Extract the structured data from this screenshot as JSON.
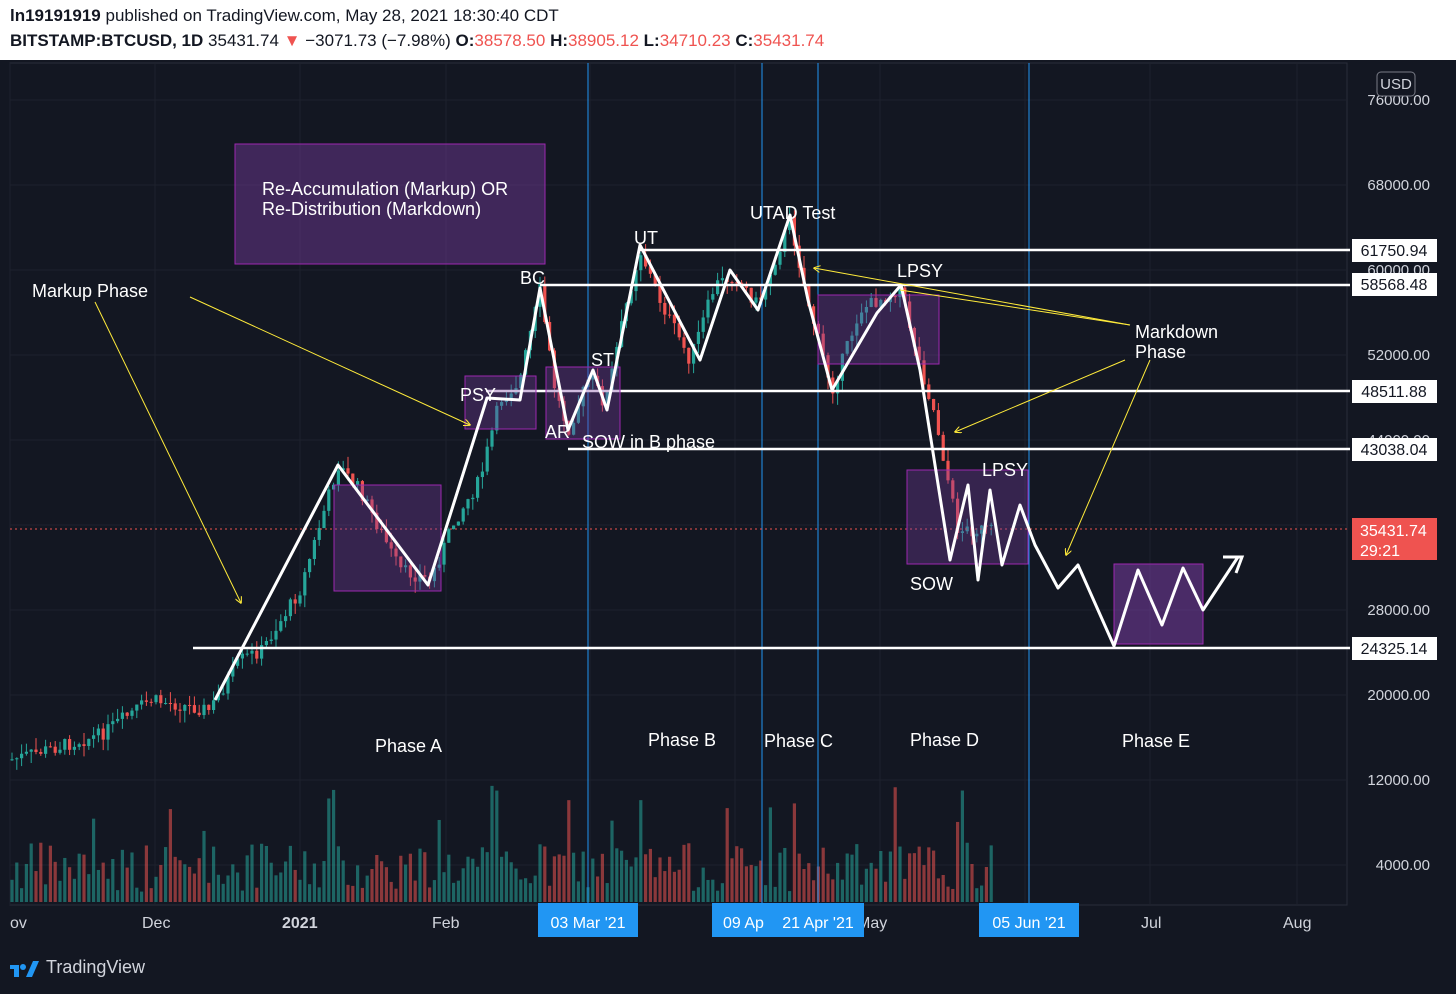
{
  "header": {
    "author": "ln19191919",
    "published_text": "published on TradingView.com, May 28, 2021 18:30:40 CDT",
    "symbol": "BITSTAMP:BTCUSD, 1D",
    "last_price": "35431.74",
    "change_arrow": "▼",
    "change": "−3071.73 (−7.98%)",
    "o_label": "O:",
    "o_value": "38578.50",
    "h_label": "H:",
    "h_value": "38905.12",
    "l_label": "L:",
    "l_value": "34710.23",
    "c_label": "C:",
    "c_value": "35431.74"
  },
  "chart_data": {
    "type": "candlestick",
    "currency_label": "USD",
    "y_ticks": [
      "76000.00",
      "68000.00",
      "60000.00",
      "52000.00",
      "44000.00",
      "36000.00",
      "28000.00",
      "20000.00",
      "12000.00",
      "4000.00"
    ],
    "x_ticks": [
      "ov",
      "Dec",
      "2021",
      "Feb",
      "May",
      "Jul",
      "Aug"
    ],
    "highlighted_dates": [
      "03 Mar '21",
      "09 Ap",
      "21 Apr '21",
      "05 Jun '21"
    ],
    "levels": [
      {
        "value": "61750.94"
      },
      {
        "value": "58568.48"
      },
      {
        "value": "48511.88"
      },
      {
        "value": "43038.04"
      },
      {
        "value": "24325.14"
      }
    ],
    "current_price": "35431.74",
    "countdown": "29:21",
    "annotations": [
      "Markup Phase",
      "Re-Accumulation (Markup) OR",
      "Re-Distribution (Markdown)",
      "PSY",
      "BC",
      "AR",
      "ST",
      "SOW in B phase",
      "UT",
      "UTAD Test",
      "LPSY",
      "Markdown",
      "Phase",
      "LPSY",
      "SOW"
    ],
    "phases": [
      "Phase A",
      "Phase B",
      "Phase C",
      "Phase D",
      "Phase E"
    ]
  },
  "colors": {
    "bg": "#131722",
    "up": "#26a69a",
    "down": "#ef5350",
    "accent": "#2196f3",
    "box": "#9c27b0"
  },
  "footer": {
    "brand": "TradingView"
  }
}
